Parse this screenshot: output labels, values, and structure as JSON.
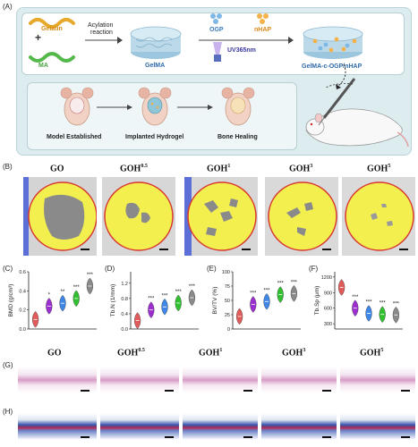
{
  "panel_labels": {
    "a": "(A)",
    "b": "(B)",
    "c": "(C)",
    "d": "(D)",
    "e": "(E)",
    "f": "(F)",
    "g": "(G)",
    "h": "(H)"
  },
  "schematic": {
    "gelatin": "Gelatin",
    "plus": "+",
    "ma": "MA",
    "acylation": "Acylation",
    "reaction": "reaction",
    "gelma": "GelMA",
    "ogp": "OGP",
    "nhap": "nHAP",
    "uv": "UV365nm",
    "product": "GelMA-c-OGP/nHAP",
    "step1": "Model Established",
    "step2": "Implanted Hydrogel",
    "step3": "Bone Healing"
  },
  "groups": [
    {
      "base": "GO",
      "sup": ""
    },
    {
      "base": "GOH",
      "sup": "0.5"
    },
    {
      "base": "GOH",
      "sup": "1"
    },
    {
      "base": "GOH",
      "sup": "3"
    },
    {
      "base": "GOH",
      "sup": "5"
    }
  ],
  "colors": {
    "g1": "#e25b5b",
    "g2": "#9b2fd0",
    "g3": "#3f87e6",
    "g4": "#30c030",
    "g5": "#8a8a8a",
    "ct_yellow": "#f6f15a",
    "ct_circle": "#e04040",
    "gelatin": "#e6a92c",
    "ma": "#55b84a"
  },
  "chart_data": [
    {
      "type": "violin",
      "panel": "C",
      "ylabel": "BMD (g/cm³)",
      "ylim": [
        0,
        0.6
      ],
      "yticks": [
        "0.0",
        "0.2",
        "0.4",
        "0.6"
      ],
      "values": [
        0.1,
        0.24,
        0.27,
        0.32,
        0.45
      ],
      "sig": [
        "",
        "*",
        "**",
        "***",
        "***"
      ]
    },
    {
      "type": "violin",
      "panel": "D",
      "ylabel": "Tb.N (1/mm)",
      "ylim": [
        0,
        1.5
      ],
      "yticks": [
        "0.0",
        "0.4",
        "0.8",
        "1.2"
      ],
      "values": [
        0.22,
        0.5,
        0.58,
        0.68,
        0.82
      ],
      "sig": [
        "",
        "***",
        "***",
        "***",
        "***"
      ]
    },
    {
      "type": "violin",
      "panel": "E",
      "ylabel": "BV/TV (%)",
      "ylim": [
        0,
        100
      ],
      "yticks": [
        "0",
        "25",
        "50",
        "75",
        "100"
      ],
      "values": [
        22,
        43,
        48,
        60,
        62
      ],
      "sig": [
        "",
        "***",
        "***",
        "***",
        "***"
      ]
    },
    {
      "type": "violin",
      "panel": "F",
      "ylabel": "Tb.Sp (μm)",
      "ylim": [
        200,
        1300
      ],
      "yticks": [
        "300",
        "600",
        "900",
        "1200"
      ],
      "values": [
        1000,
        600,
        500,
        480,
        470
      ],
      "sig": [
        "",
        "***",
        "***",
        "***",
        "***"
      ]
    }
  ]
}
